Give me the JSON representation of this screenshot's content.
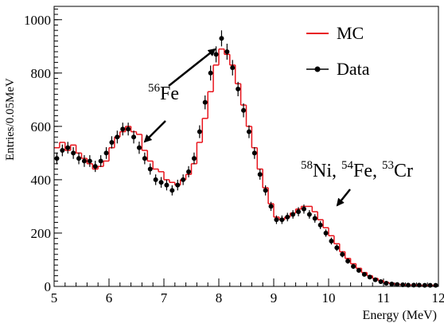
{
  "chart_data": {
    "type": "histogram",
    "x_label": "Energy (MeV)",
    "y_label": "Entries/0.05MeV",
    "xlim": [
      5,
      12
    ],
    "ylim": [
      0,
      1050
    ],
    "xticks": [
      5,
      6,
      7,
      8,
      9,
      10,
      11,
      12
    ],
    "yticks": [
      0,
      200,
      400,
      600,
      800,
      1000
    ],
    "legend_position": "top-right",
    "annotations": [
      {
        "segments": [
          {
            "sup": "56",
            "text": "Fe"
          }
        ]
      },
      {
        "segments": [
          {
            "sup": "58",
            "text": "Ni,"
          },
          {
            "sup": "54",
            "text": "Fe,"
          },
          {
            "sup": "53",
            "text": "Cr"
          }
        ]
      }
    ],
    "series": [
      {
        "name": "MC",
        "type": "step",
        "color": "#e8141c",
        "bins": [
          5.0,
          5.1,
          5.2,
          5.3,
          5.4,
          5.5,
          5.6,
          5.7,
          5.8,
          5.9,
          6.0,
          6.1,
          6.2,
          6.3,
          6.4,
          6.5,
          6.6,
          6.7,
          6.8,
          6.9,
          7.0,
          7.1,
          7.2,
          7.3,
          7.4,
          7.5,
          7.6,
          7.7,
          7.8,
          7.9,
          8.0,
          8.1,
          8.2,
          8.3,
          8.4,
          8.5,
          8.6,
          8.7,
          8.8,
          8.9,
          9.0,
          9.1,
          9.2,
          9.3,
          9.4,
          9.5,
          9.6,
          9.7,
          9.8,
          9.9,
          10.0,
          10.1,
          10.2,
          10.3,
          10.4,
          10.5,
          10.6,
          10.7,
          10.8,
          10.9,
          11.0,
          11.1,
          11.2,
          11.3,
          11.4,
          11.5,
          11.6,
          11.7,
          11.8,
          11.9,
          12.0
        ],
        "values": [
          520,
          540,
          510,
          530,
          500,
          480,
          460,
          440,
          450,
          470,
          520,
          560,
          580,
          600,
          580,
          570,
          510,
          470,
          440,
          430,
          400,
          390,
          380,
          400,
          420,
          460,
          540,
          630,
          730,
          830,
          890,
          870,
          830,
          760,
          680,
          600,
          520,
          440,
          370,
          310,
          260,
          250,
          260,
          275,
          290,
          300,
          300,
          280,
          250,
          220,
          190,
          160,
          130,
          105,
          85,
          68,
          52,
          40,
          30,
          22,
          15,
          11,
          8,
          6,
          5,
          5,
          4,
          4,
          4,
          4
        ]
      },
      {
        "name": "Data",
        "type": "errorbar",
        "color": "#000000",
        "x": [
          5.05,
          5.15,
          5.25,
          5.35,
          5.45,
          5.55,
          5.65,
          5.75,
          5.85,
          5.95,
          6.05,
          6.15,
          6.25,
          6.35,
          6.45,
          6.55,
          6.65,
          6.75,
          6.85,
          6.95,
          7.05,
          7.15,
          7.25,
          7.35,
          7.45,
          7.55,
          7.65,
          7.75,
          7.85,
          7.95,
          8.05,
          8.15,
          8.25,
          8.35,
          8.45,
          8.55,
          8.65,
          8.75,
          8.85,
          8.95,
          9.05,
          9.15,
          9.25,
          9.35,
          9.45,
          9.55,
          9.65,
          9.75,
          9.85,
          9.95,
          10.05,
          10.15,
          10.25,
          10.35,
          10.45,
          10.55,
          10.65,
          10.75,
          10.85,
          10.95,
          11.05,
          11.15,
          11.25,
          11.35,
          11.45,
          11.55,
          11.65,
          11.75,
          11.85,
          11.95
        ],
        "values": [
          480,
          510,
          520,
          500,
          480,
          470,
          470,
          450,
          470,
          500,
          540,
          560,
          590,
          590,
          560,
          520,
          480,
          440,
          400,
          390,
          380,
          360,
          380,
          400,
          430,
          480,
          580,
          690,
          800,
          870,
          930,
          880,
          820,
          740,
          660,
          580,
          500,
          420,
          360,
          300,
          250,
          250,
          260,
          270,
          280,
          290,
          270,
          255,
          230,
          200,
          170,
          145,
          120,
          95,
          75,
          60,
          45,
          35,
          25,
          18,
          12,
          9,
          7,
          6,
          5,
          5,
          5,
          4,
          4,
          4
        ],
        "errors": [
          22,
          22,
          22,
          22,
          22,
          22,
          22,
          21,
          22,
          22,
          23,
          24,
          24,
          24,
          24,
          23,
          22,
          21,
          20,
          20,
          20,
          19,
          20,
          20,
          21,
          22,
          24,
          26,
          28,
          30,
          30,
          30,
          29,
          27,
          26,
          24,
          22,
          20,
          19,
          17,
          16,
          16,
          16,
          16,
          17,
          17,
          16,
          16,
          15,
          14,
          13,
          12,
          11,
          10,
          9,
          8,
          7,
          6,
          5,
          4,
          4,
          3,
          3,
          2,
          2,
          2,
          2,
          2,
          2,
          2
        ]
      }
    ]
  }
}
